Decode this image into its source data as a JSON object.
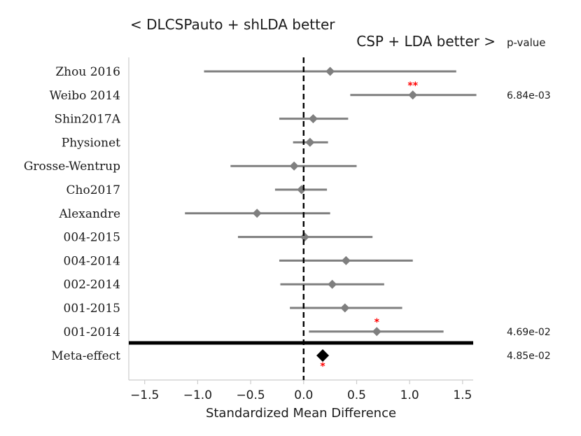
{
  "chart_data": {
    "type": "forest",
    "title_left": "< DLCSPauto + shLDA better",
    "title_right": "CSP + LDA better >",
    "pvalue_header": "p-value",
    "xlabel": "Standardized Mean Difference",
    "xlim": [
      -1.65,
      1.6
    ],
    "xticks": [
      -1.5,
      -1.0,
      -0.5,
      0.0,
      0.5,
      1.0,
      1.5
    ],
    "xtick_labels": [
      "−1.5",
      "−1.0",
      "−0.5",
      "0.0",
      "0.5",
      "1.0",
      "1.5"
    ],
    "studies": [
      {
        "label": "Zhou 2016",
        "mean": 0.25,
        "lo": -0.94,
        "hi": 1.44,
        "sig": "",
        "pvalue": ""
      },
      {
        "label": "Weibo 2014",
        "mean": 1.03,
        "lo": 0.44,
        "hi": 1.63,
        "sig": "**",
        "pvalue": "6.84e-03"
      },
      {
        "label": "Shin2017A",
        "mean": 0.09,
        "lo": -0.23,
        "hi": 0.42,
        "sig": "",
        "pvalue": ""
      },
      {
        "label": "Physionet",
        "mean": 0.06,
        "lo": -0.1,
        "hi": 0.23,
        "sig": "",
        "pvalue": ""
      },
      {
        "label": "Grosse-Wentrup",
        "mean": -0.09,
        "lo": -0.69,
        "hi": 0.5,
        "sig": "",
        "pvalue": ""
      },
      {
        "label": "Cho2017",
        "mean": -0.02,
        "lo": -0.27,
        "hi": 0.22,
        "sig": "",
        "pvalue": ""
      },
      {
        "label": "Alexandre",
        "mean": -0.44,
        "lo": -1.12,
        "hi": 0.25,
        "sig": "",
        "pvalue": ""
      },
      {
        "label": "004-2015",
        "mean": 0.01,
        "lo": -0.62,
        "hi": 0.65,
        "sig": "",
        "pvalue": ""
      },
      {
        "label": "004-2014",
        "mean": 0.4,
        "lo": -0.23,
        "hi": 1.03,
        "sig": "",
        "pvalue": ""
      },
      {
        "label": "002-2014",
        "mean": 0.27,
        "lo": -0.22,
        "hi": 0.76,
        "sig": "",
        "pvalue": ""
      },
      {
        "label": "001-2015",
        "mean": 0.39,
        "lo": -0.13,
        "hi": 0.93,
        "sig": "",
        "pvalue": ""
      },
      {
        "label": "001-2014",
        "mean": 0.69,
        "lo": 0.05,
        "hi": 1.32,
        "sig": "*",
        "pvalue": "4.69e-02"
      }
    ],
    "meta": {
      "label": "Meta-effect",
      "mean": 0.18,
      "sig": "*",
      "pvalue": "4.85e-02"
    },
    "colors": {
      "study": "#7f7f7f",
      "meta": "#000000",
      "sig": "#ff0000",
      "axis": "#cccccc",
      "text": "#1a1a1a"
    }
  }
}
